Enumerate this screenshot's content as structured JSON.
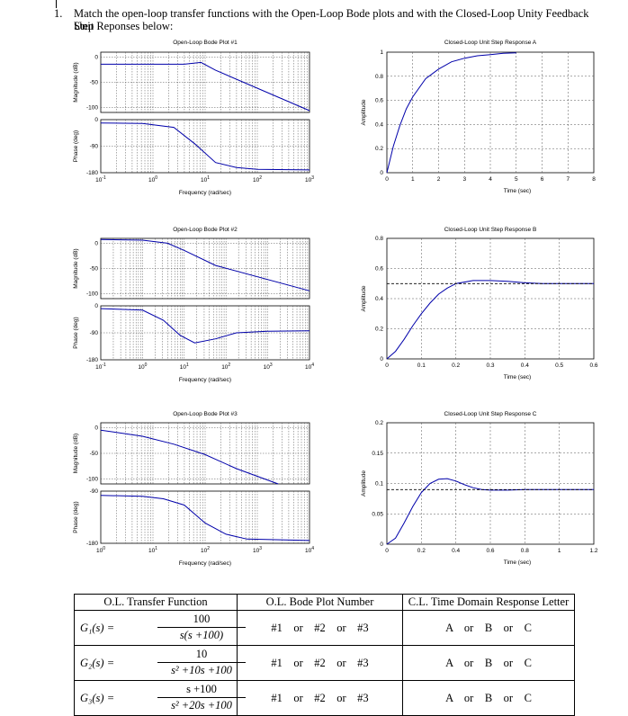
{
  "question": {
    "number": "1.",
    "line1": "Match the open-loop transfer functions with the Open-Loop Bode plots and with the Closed-Loop Unity Feedback Unit",
    "line2": "Step Reponses below:"
  },
  "bode_plots": [
    {
      "title": "Open-Loop Bode Plot #1",
      "mag_label": "Magnitude (dB)",
      "phase_label": "Phase (deg)",
      "xlabel": "Frequency (rad/sec)",
      "mag_ticks": [
        "0",
        "-50",
        "-100"
      ],
      "phase_ticks": [
        "0",
        "-90",
        "-180"
      ],
      "x_ticks": [
        [
          "10",
          "-1"
        ],
        [
          "10",
          "0"
        ],
        [
          "10",
          "1"
        ],
        [
          "10",
          "2"
        ],
        [
          "10",
          "3"
        ]
      ]
    },
    {
      "title": "Open-Loop Bode Plot #2",
      "mag_label": "Magnitude (dB)",
      "phase_label": "Phase (deg)",
      "xlabel": "Frequency (rad/sec)",
      "mag_ticks": [
        "0",
        "-50",
        "-100"
      ],
      "phase_ticks": [
        "0",
        "-90",
        "-180"
      ],
      "x_ticks": [
        [
          "10",
          "-1"
        ],
        [
          "10",
          "0"
        ],
        [
          "10",
          "1"
        ],
        [
          "10",
          "2"
        ],
        [
          "10",
          "3"
        ],
        [
          "10",
          "4"
        ]
      ]
    },
    {
      "title": "Open-Loop Bode Plot #3",
      "mag_label": "Magnitude (dB)",
      "phase_label": "Phase (deg)",
      "xlabel": "Frequency (rad/sec)",
      "mag_ticks": [
        "0",
        "-50",
        "-100"
      ],
      "phase_ticks": [
        "-90",
        "-180"
      ],
      "x_ticks": [
        [
          "10",
          "0"
        ],
        [
          "10",
          "1"
        ],
        [
          "10",
          "2"
        ],
        [
          "10",
          "3"
        ],
        [
          "10",
          "4"
        ]
      ]
    }
  ],
  "chart_data": [
    {
      "type": "line",
      "title": "Closed-Loop Unit Step Response A",
      "xlabel": "Time (sec)",
      "ylabel": "Amplitude",
      "xlim": [
        0,
        8
      ],
      "ylim": [
        0,
        1
      ],
      "x_ticks": [
        "0",
        "1",
        "2",
        "3",
        "4",
        "5",
        "6",
        "7",
        "8"
      ],
      "y_ticks": [
        "0",
        "0.2",
        "0.4",
        "0.6",
        "0.8",
        "1"
      ],
      "series": [
        {
          "name": "response",
          "x": [
            0,
            0.25,
            0.5,
            0.75,
            1,
            1.5,
            2,
            2.5,
            3,
            3.5,
            4,
            4.5,
            5
          ],
          "y": [
            0,
            0.22,
            0.39,
            0.53,
            0.63,
            0.78,
            0.86,
            0.92,
            0.95,
            0.97,
            0.98,
            0.99,
            0.995
          ]
        }
      ]
    },
    {
      "type": "line",
      "title": "Closed-Loop Unit Step Response B",
      "xlabel": "Time (sec)",
      "ylabel": "Amplitude",
      "xlim": [
        0,
        0.6
      ],
      "ylim": [
        0,
        0.8
      ],
      "x_ticks": [
        "0",
        "0.1",
        "0.2",
        "0.3",
        "0.4",
        "0.5",
        "0.6"
      ],
      "y_ticks": [
        "0",
        "0.2",
        "0.4",
        "0.6",
        "0.8"
      ],
      "series": [
        {
          "name": "response",
          "x": [
            0,
            0.025,
            0.05,
            0.075,
            0.1,
            0.125,
            0.15,
            0.175,
            0.2,
            0.25,
            0.3,
            0.35,
            0.4,
            0.45,
            0.5,
            0.55,
            0.6
          ],
          "y": [
            0,
            0.05,
            0.13,
            0.22,
            0.3,
            0.37,
            0.43,
            0.47,
            0.5,
            0.52,
            0.52,
            0.515,
            0.505,
            0.5,
            0.5,
            0.5,
            0.5
          ]
        },
        {
          "name": "steady-state",
          "x": [
            0,
            0.6
          ],
          "y": [
            0.5,
            0.5
          ],
          "dashed": true
        }
      ]
    },
    {
      "type": "line",
      "title": "Closed-Loop Unit Step Response C",
      "xlabel": "Time (sec)",
      "ylabel": "Amplitude",
      "xlim": [
        0,
        1.2
      ],
      "ylim": [
        0,
        0.2
      ],
      "x_ticks": [
        "0",
        "0.2",
        "0.4",
        "0.6",
        "0.8",
        "1",
        "1.2"
      ],
      "y_ticks": [
        "0",
        "0.05",
        "0.1",
        "0.15",
        "0.2"
      ],
      "series": [
        {
          "name": "response",
          "x": [
            0,
            0.05,
            0.1,
            0.15,
            0.2,
            0.25,
            0.3,
            0.35,
            0.4,
            0.45,
            0.5,
            0.55,
            0.6,
            0.7,
            0.8,
            0.9,
            1,
            1.2
          ],
          "y": [
            0,
            0.01,
            0.035,
            0.062,
            0.085,
            0.1,
            0.107,
            0.108,
            0.104,
            0.098,
            0.093,
            0.09,
            0.089,
            0.089,
            0.09,
            0.09,
            0.09,
            0.09
          ]
        },
        {
          "name": "steady-state",
          "x": [
            0,
            1.2
          ],
          "y": [
            0.09,
            0.09
          ],
          "dashed": true
        }
      ]
    }
  ],
  "table": {
    "headers": [
      "O.L. Transfer Function",
      "O.L. Bode Plot Number",
      "C.L. Time Domain Response Letter"
    ],
    "rows": [
      {
        "lhs": "G₁(s) =",
        "num": "100",
        "den": "s(s +100)",
        "bode": "#1    or    #2    or    #3",
        "resp": "A    or    B    or    C"
      },
      {
        "lhs": "G₂(s) =",
        "num": "10",
        "den": "s² +10s +100",
        "bode": "#1    or    #2    or    #3",
        "resp": "A    or    B    or    C"
      },
      {
        "lhs": "G₃(s) =",
        "num": "s +100",
        "den": "s² +20s +100",
        "bode": "#1    or    #2    or    #3",
        "resp": "A    or    B    or    C"
      }
    ]
  }
}
